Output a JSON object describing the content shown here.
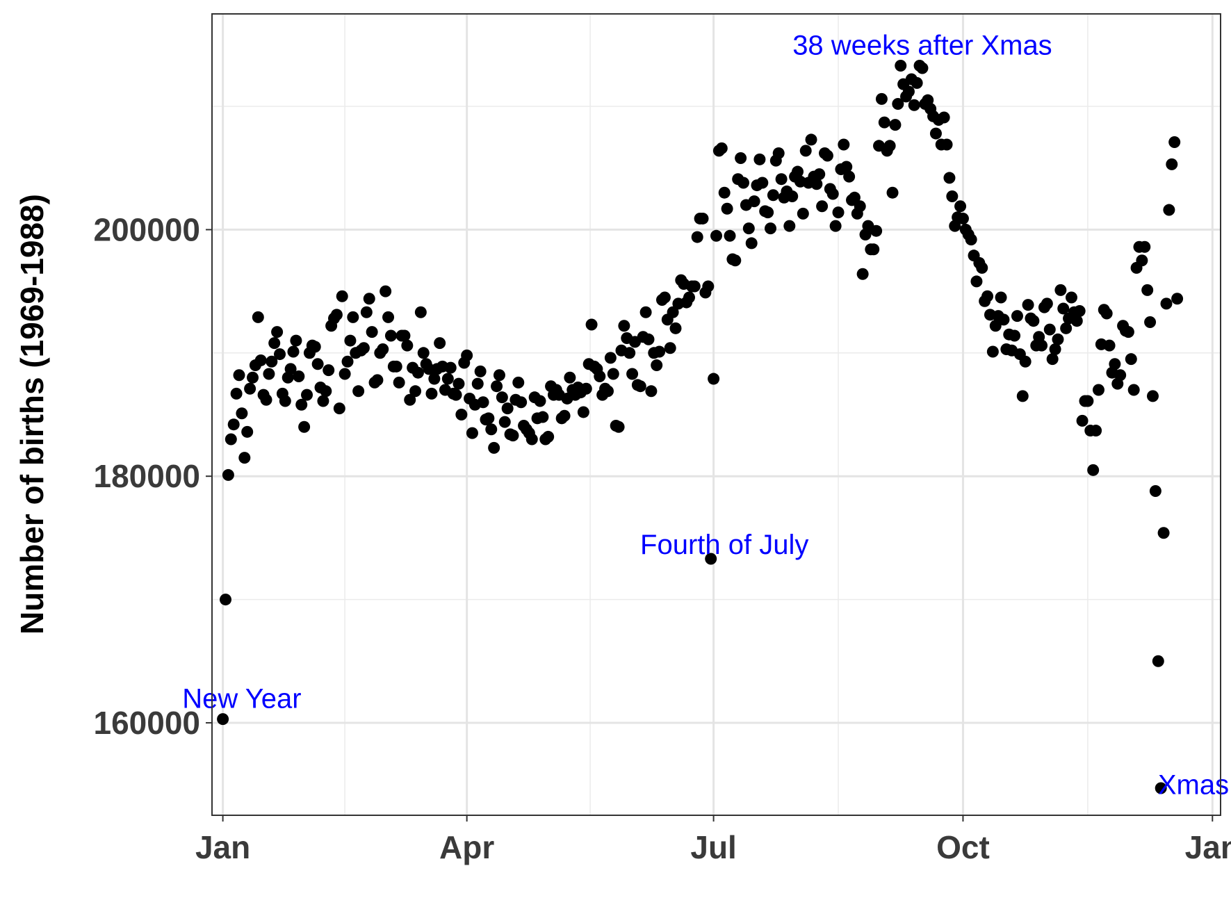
{
  "chart_data": {
    "type": "scatter",
    "title": "",
    "xlabel": "",
    "ylabel": "Number of births (1969-1988)",
    "grid": true,
    "legend": "none",
    "x_axis": {
      "unit": "day-of-year",
      "range": [
        -3,
        369
      ],
      "ticks": [
        {
          "value": 1,
          "label": "Jan"
        },
        {
          "value": 91,
          "label": "Apr"
        },
        {
          "value": 182,
          "label": "Jul"
        },
        {
          "value": 274,
          "label": "Oct"
        },
        {
          "value": 366,
          "label": "Jan"
        }
      ]
    },
    "y_axis": {
      "range": [
        152500,
        217500
      ],
      "ticks": [
        {
          "value": 160000,
          "label": "160000"
        },
        {
          "value": 180000,
          "label": "180000"
        },
        {
          "value": 200000,
          "label": "200000"
        }
      ],
      "minor_ticks": [
        170000,
        190000,
        210000
      ]
    },
    "point_color": "#000000",
    "annotation_color": "#0000ff",
    "annotations": [
      {
        "label": "New Year",
        "x": 8,
        "y": 162000
      },
      {
        "label": "Fourth of July",
        "x": 186,
        "y": 174500
      },
      {
        "label": "38 weeks after Xmas",
        "x": 259,
        "y": 215000
      },
      {
        "label": "Xmas",
        "x": 359,
        "y": 155000
      }
    ],
    "points": [
      [
        1,
        160300
      ],
      [
        2,
        170000
      ],
      [
        3,
        180100
      ],
      [
        4,
        183000
      ],
      [
        5,
        184200
      ],
      [
        6,
        186700
      ],
      [
        7,
        188200
      ],
      [
        8,
        185100
      ],
      [
        9,
        181500
      ],
      [
        10,
        183600
      ],
      [
        11,
        187100
      ],
      [
        12,
        188000
      ],
      [
        13,
        189000
      ],
      [
        14,
        192900
      ],
      [
        15,
        189400
      ],
      [
        16,
        186600
      ],
      [
        17,
        186200
      ],
      [
        18,
        188300
      ],
      [
        19,
        189300
      ],
      [
        20,
        190800
      ],
      [
        21,
        191700
      ],
      [
        22,
        189900
      ],
      [
        23,
        186700
      ],
      [
        24,
        186100
      ],
      [
        25,
        188000
      ],
      [
        26,
        188700
      ],
      [
        27,
        190100
      ],
      [
        28,
        191000
      ],
      [
        29,
        188100
      ],
      [
        30,
        185800
      ],
      [
        31,
        184000
      ],
      [
        32,
        186600
      ],
      [
        33,
        190000
      ],
      [
        34,
        190600
      ],
      [
        35,
        190500
      ],
      [
        36,
        189100
      ],
      [
        37,
        187200
      ],
      [
        38,
        186100
      ],
      [
        39,
        186900
      ],
      [
        40,
        188600
      ],
      [
        41,
        192200
      ],
      [
        42,
        192800
      ],
      [
        43,
        193100
      ],
      [
        44,
        185500
      ],
      [
        45,
        194600
      ],
      [
        46,
        188300
      ],
      [
        47,
        189300
      ],
      [
        48,
        191000
      ],
      [
        49,
        192900
      ],
      [
        50,
        190000
      ],
      [
        51,
        186900
      ],
      [
        52,
        190200
      ],
      [
        53,
        190400
      ],
      [
        54,
        193300
      ],
      [
        55,
        194400
      ],
      [
        56,
        191700
      ],
      [
        57,
        187600
      ],
      [
        58,
        187800
      ],
      [
        59,
        190000
      ],
      [
        60,
        190300
      ],
      [
        61,
        195000
      ],
      [
        62,
        192900
      ],
      [
        63,
        191400
      ],
      [
        64,
        188900
      ],
      [
        65,
        188900
      ],
      [
        66,
        187600
      ],
      [
        67,
        191400
      ],
      [
        68,
        191400
      ],
      [
        69,
        190600
      ],
      [
        70,
        186200
      ],
      [
        71,
        188800
      ],
      [
        72,
        186900
      ],
      [
        73,
        188400
      ],
      [
        74,
        193300
      ],
      [
        75,
        190000
      ],
      [
        76,
        189100
      ],
      [
        77,
        188700
      ],
      [
        78,
        186700
      ],
      [
        79,
        187900
      ],
      [
        80,
        188700
      ],
      [
        81,
        190800
      ],
      [
        82,
        188900
      ],
      [
        83,
        187000
      ],
      [
        84,
        187900
      ],
      [
        85,
        188800
      ],
      [
        86,
        186700
      ],
      [
        87,
        186600
      ],
      [
        88,
        187500
      ],
      [
        89,
        185000
      ],
      [
        90,
        189200
      ],
      [
        91,
        189800
      ],
      [
        92,
        186300
      ],
      [
        93,
        183500
      ],
      [
        94,
        185800
      ],
      [
        95,
        187500
      ],
      [
        96,
        188500
      ],
      [
        97,
        186000
      ],
      [
        98,
        184600
      ],
      [
        99,
        184700
      ],
      [
        100,
        183800
      ],
      [
        101,
        182300
      ],
      [
        102,
        187300
      ],
      [
        103,
        188200
      ],
      [
        104,
        186400
      ],
      [
        105,
        184400
      ],
      [
        106,
        185500
      ],
      [
        107,
        183400
      ],
      [
        108,
        183300
      ],
      [
        109,
        186200
      ],
      [
        110,
        187600
      ],
      [
        111,
        186000
      ],
      [
        112,
        184100
      ],
      [
        113,
        183800
      ],
      [
        114,
        183500
      ],
      [
        115,
        183000
      ],
      [
        116,
        186400
      ],
      [
        117,
        184700
      ],
      [
        118,
        186100
      ],
      [
        119,
        184800
      ],
      [
        120,
        183000
      ],
      [
        121,
        183200
      ],
      [
        122,
        187300
      ],
      [
        123,
        186600
      ],
      [
        124,
        187000
      ],
      [
        125,
        186600
      ],
      [
        126,
        184700
      ],
      [
        127,
        184900
      ],
      [
        128,
        186300
      ],
      [
        129,
        188000
      ],
      [
        130,
        187000
      ],
      [
        131,
        186600
      ],
      [
        132,
        187200
      ],
      [
        133,
        186800
      ],
      [
        134,
        185200
      ],
      [
        135,
        187100
      ],
      [
        136,
        189100
      ],
      [
        137,
        192300
      ],
      [
        138,
        188900
      ],
      [
        139,
        188700
      ],
      [
        140,
        188100
      ],
      [
        141,
        186600
      ],
      [
        142,
        187100
      ],
      [
        143,
        186900
      ],
      [
        144,
        189600
      ],
      [
        145,
        188300
      ],
      [
        146,
        184100
      ],
      [
        147,
        184000
      ],
      [
        148,
        190200
      ],
      [
        149,
        192200
      ],
      [
        150,
        191200
      ],
      [
        151,
        190000
      ],
      [
        152,
        188300
      ],
      [
        153,
        190900
      ],
      [
        154,
        187400
      ],
      [
        155,
        187300
      ],
      [
        156,
        191300
      ],
      [
        157,
        193300
      ],
      [
        158,
        191100
      ],
      [
        159,
        186900
      ],
      [
        160,
        190000
      ],
      [
        161,
        189000
      ],
      [
        162,
        190100
      ],
      [
        163,
        194300
      ],
      [
        164,
        194500
      ],
      [
        165,
        192700
      ],
      [
        166,
        190400
      ],
      [
        167,
        193300
      ],
      [
        168,
        192000
      ],
      [
        169,
        194000
      ],
      [
        170,
        195900
      ],
      [
        171,
        195600
      ],
      [
        172,
        194100
      ],
      [
        173,
        194500
      ],
      [
        174,
        195400
      ],
      [
        175,
        195400
      ],
      [
        176,
        199400
      ],
      [
        177,
        200900
      ],
      [
        178,
        200900
      ],
      [
        179,
        194900
      ],
      [
        180,
        195400
      ],
      [
        181,
        173300
      ],
      [
        182,
        187900
      ],
      [
        183,
        199500
      ],
      [
        184,
        206400
      ],
      [
        185,
        206600
      ],
      [
        186,
        203000
      ],
      [
        187,
        201700
      ],
      [
        188,
        199500
      ],
      [
        189,
        197600
      ],
      [
        190,
        197500
      ],
      [
        191,
        204100
      ],
      [
        192,
        205800
      ],
      [
        193,
        203800
      ],
      [
        194,
        202000
      ],
      [
        195,
        200100
      ],
      [
        196,
        198900
      ],
      [
        197,
        202300
      ],
      [
        198,
        203600
      ],
      [
        199,
        205700
      ],
      [
        200,
        203800
      ],
      [
        201,
        201500
      ],
      [
        202,
        201400
      ],
      [
        203,
        200100
      ],
      [
        204,
        202800
      ],
      [
        205,
        205600
      ],
      [
        206,
        206200
      ],
      [
        207,
        204100
      ],
      [
        208,
        202600
      ],
      [
        209,
        203100
      ],
      [
        210,
        200300
      ],
      [
        211,
        202700
      ],
      [
        212,
        204300
      ],
      [
        213,
        204700
      ],
      [
        214,
        203900
      ],
      [
        215,
        201300
      ],
      [
        216,
        206400
      ],
      [
        217,
        203800
      ],
      [
        218,
        207300
      ],
      [
        219,
        204300
      ],
      [
        220,
        203700
      ],
      [
        221,
        204500
      ],
      [
        222,
        201900
      ],
      [
        223,
        206200
      ],
      [
        224,
        206000
      ],
      [
        225,
        203300
      ],
      [
        226,
        202900
      ],
      [
        227,
        200300
      ],
      [
        228,
        201400
      ],
      [
        229,
        204900
      ],
      [
        230,
        206900
      ],
      [
        231,
        205100
      ],
      [
        232,
        204300
      ],
      [
        233,
        202400
      ],
      [
        234,
        202600
      ],
      [
        235,
        201300
      ],
      [
        236,
        201900
      ],
      [
        237,
        196400
      ],
      [
        238,
        199600
      ],
      [
        239,
        200300
      ],
      [
        240,
        198400
      ],
      [
        241,
        198400
      ],
      [
        242,
        199900
      ],
      [
        243,
        206800
      ],
      [
        244,
        210600
      ],
      [
        245,
        208700
      ],
      [
        246,
        206400
      ],
      [
        247,
        206800
      ],
      [
        248,
        203000
      ],
      [
        249,
        208500
      ],
      [
        250,
        210200
      ],
      [
        251,
        213300
      ],
      [
        252,
        211800
      ],
      [
        253,
        210800
      ],
      [
        254,
        211200
      ],
      [
        255,
        212200
      ],
      [
        256,
        210100
      ],
      [
        257,
        211900
      ],
      [
        258,
        213300
      ],
      [
        259,
        213100
      ],
      [
        260,
        210200
      ],
      [
        261,
        210500
      ],
      [
        262,
        209800
      ],
      [
        263,
        209200
      ],
      [
        264,
        207800
      ],
      [
        265,
        208900
      ],
      [
        266,
        206900
      ],
      [
        267,
        209100
      ],
      [
        268,
        206900
      ],
      [
        269,
        204200
      ],
      [
        270,
        202700
      ],
      [
        271,
        200300
      ],
      [
        272,
        201000
      ],
      [
        273,
        201900
      ],
      [
        274,
        200900
      ],
      [
        275,
        200000
      ],
      [
        276,
        199600
      ],
      [
        277,
        199200
      ],
      [
        278,
        197900
      ],
      [
        279,
        195800
      ],
      [
        280,
        197300
      ],
      [
        281,
        196900
      ],
      [
        282,
        194200
      ],
      [
        283,
        194600
      ],
      [
        284,
        193100
      ],
      [
        285,
        190100
      ],
      [
        286,
        192200
      ],
      [
        287,
        193000
      ],
      [
        288,
        194500
      ],
      [
        289,
        192700
      ],
      [
        290,
        190300
      ],
      [
        291,
        191500
      ],
      [
        292,
        190200
      ],
      [
        293,
        191400
      ],
      [
        294,
        193000
      ],
      [
        295,
        189900
      ],
      [
        296,
        186500
      ],
      [
        297,
        189300
      ],
      [
        298,
        193900
      ],
      [
        299,
        192800
      ],
      [
        300,
        192600
      ],
      [
        301,
        190600
      ],
      [
        302,
        191300
      ],
      [
        303,
        190600
      ],
      [
        304,
        193700
      ],
      [
        305,
        194000
      ],
      [
        306,
        191900
      ],
      [
        307,
        189500
      ],
      [
        308,
        190300
      ],
      [
        309,
        191100
      ],
      [
        310,
        195100
      ],
      [
        311,
        193600
      ],
      [
        312,
        192000
      ],
      [
        313,
        192800
      ],
      [
        314,
        194500
      ],
      [
        315,
        193300
      ],
      [
        316,
        192600
      ],
      [
        317,
        193400
      ],
      [
        318,
        184500
      ],
      [
        319,
        186100
      ],
      [
        320,
        186100
      ],
      [
        321,
        183700
      ],
      [
        322,
        180500
      ],
      [
        323,
        183700
      ],
      [
        324,
        187000
      ],
      [
        325,
        190700
      ],
      [
        326,
        193500
      ],
      [
        327,
        193200
      ],
      [
        328,
        190600
      ],
      [
        329,
        188400
      ],
      [
        330,
        189100
      ],
      [
        331,
        187500
      ],
      [
        332,
        188200
      ],
      [
        333,
        192200
      ],
      [
        334,
        191800
      ],
      [
        335,
        191700
      ],
      [
        336,
        189500
      ],
      [
        337,
        187000
      ],
      [
        338,
        196900
      ],
      [
        339,
        198600
      ],
      [
        340,
        197500
      ],
      [
        341,
        198600
      ],
      [
        342,
        195100
      ],
      [
        343,
        192500
      ],
      [
        344,
        186500
      ],
      [
        345,
        178800
      ],
      [
        346,
        165000
      ],
      [
        347,
        154700
      ],
      [
        348,
        175400
      ],
      [
        349,
        194000
      ],
      [
        350,
        201600
      ],
      [
        351,
        205300
      ],
      [
        352,
        207100
      ],
      [
        353,
        194400
      ]
    ]
  }
}
